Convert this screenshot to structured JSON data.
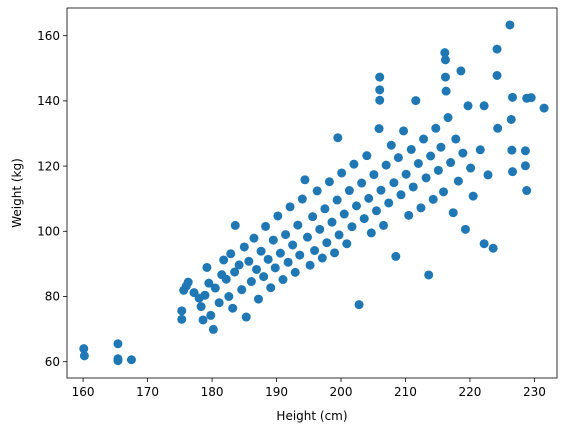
{
  "chart_data": {
    "type": "scatter",
    "title": "",
    "xlabel": "Height (cm)",
    "ylabel": "Weight (kg)",
    "xlim": [
      157.5,
      233.5
    ],
    "ylim": [
      55.0,
      168.5
    ],
    "xticks": [
      160,
      170,
      180,
      190,
      200,
      210,
      220,
      230
    ],
    "yticks": [
      60,
      80,
      100,
      120,
      140,
      160
    ],
    "grid": false,
    "legend": "none",
    "marker_color": "#1f77b4",
    "series": [
      {
        "marker": "circle",
        "points": [
          [
            160.1,
            64.0
          ],
          [
            160.2,
            61.8
          ],
          [
            165.4,
            65.5
          ],
          [
            165.4,
            60.9
          ],
          [
            165.4,
            60.3
          ],
          [
            167.5,
            60.6
          ],
          [
            175.3,
            75.6
          ],
          [
            175.3,
            73.0
          ],
          [
            175.6,
            81.9
          ],
          [
            176.0,
            83.2
          ],
          [
            176.3,
            84.4
          ],
          [
            177.2,
            81.2
          ],
          [
            178.0,
            79.5
          ],
          [
            178.3,
            76.9
          ],
          [
            178.6,
            72.8
          ],
          [
            178.9,
            80.4
          ],
          [
            179.2,
            88.9
          ],
          [
            179.5,
            84.1
          ],
          [
            179.8,
            74.2
          ],
          [
            180.2,
            69.9
          ],
          [
            180.5,
            82.6
          ],
          [
            181.1,
            78.1
          ],
          [
            181.5,
            86.7
          ],
          [
            181.8,
            91.2
          ],
          [
            182.2,
            85.3
          ],
          [
            182.6,
            80.0
          ],
          [
            182.9,
            93.1
          ],
          [
            183.2,
            76.4
          ],
          [
            183.5,
            87.5
          ],
          [
            183.6,
            101.8
          ],
          [
            184.2,
            89.7
          ],
          [
            184.6,
            82.1
          ],
          [
            185.0,
            95.2
          ],
          [
            185.3,
            73.7
          ],
          [
            185.7,
            90.8
          ],
          [
            186.1,
            84.6
          ],
          [
            186.5,
            97.9
          ],
          [
            186.9,
            88.3
          ],
          [
            187.2,
            79.2
          ],
          [
            187.6,
            93.9
          ],
          [
            188.0,
            86.1
          ],
          [
            188.3,
            101.5
          ],
          [
            188.7,
            91.4
          ],
          [
            189.1,
            82.7
          ],
          [
            189.5,
            97.3
          ],
          [
            189.8,
            88.8
          ],
          [
            190.2,
            104.7
          ],
          [
            190.6,
            93.3
          ],
          [
            191.0,
            85.2
          ],
          [
            191.4,
            99.0
          ],
          [
            191.8,
            90.5
          ],
          [
            192.1,
            107.5
          ],
          [
            192.5,
            95.8
          ],
          [
            192.9,
            87.4
          ],
          [
            193.3,
            101.9
          ],
          [
            193.6,
            92.7
          ],
          [
            194.0,
            109.9
          ],
          [
            194.4,
            115.8
          ],
          [
            194.8,
            98.2
          ],
          [
            195.2,
            89.6
          ],
          [
            195.6,
            104.5
          ],
          [
            195.9,
            94.1
          ],
          [
            196.3,
            112.4
          ],
          [
            196.7,
            100.6
          ],
          [
            197.1,
            91.8
          ],
          [
            197.5,
            106.9
          ],
          [
            197.8,
            96.5
          ],
          [
            198.2,
            115.2
          ],
          [
            198.6,
            102.8
          ],
          [
            199.0,
            93.4
          ],
          [
            199.4,
            109.6
          ],
          [
            199.5,
            128.7
          ],
          [
            199.7,
            98.9
          ],
          [
            200.1,
            117.9
          ],
          [
            200.5,
            105.3
          ],
          [
            200.9,
            96.2
          ],
          [
            201.3,
            112.5
          ],
          [
            201.7,
            101.4
          ],
          [
            202.0,
            120.6
          ],
          [
            202.4,
            107.8
          ],
          [
            202.8,
            77.5
          ],
          [
            203.2,
            114.8
          ],
          [
            203.6,
            103.9
          ],
          [
            204.0,
            123.2
          ],
          [
            204.3,
            110.1
          ],
          [
            204.7,
            99.5
          ],
          [
            205.1,
            117.4
          ],
          [
            205.5,
            106.3
          ],
          [
            205.9,
            131.5
          ],
          [
            206.0,
            147.3
          ],
          [
            206.0,
            143.4
          ],
          [
            206.0,
            140.2
          ],
          [
            206.2,
            112.6
          ],
          [
            206.6,
            101.8
          ],
          [
            207.0,
            120.3
          ],
          [
            207.4,
            108.7
          ],
          [
            207.8,
            126.4
          ],
          [
            208.2,
            114.9
          ],
          [
            208.5,
            92.3
          ],
          [
            208.9,
            122.6
          ],
          [
            209.3,
            111.2
          ],
          [
            209.7,
            130.8
          ],
          [
            210.1,
            117.5
          ],
          [
            210.5,
            104.9
          ],
          [
            210.9,
            125.1
          ],
          [
            211.2,
            113.6
          ],
          [
            211.6,
            140.1
          ],
          [
            212.0,
            120.8
          ],
          [
            212.4,
            107.2
          ],
          [
            212.8,
            128.3
          ],
          [
            213.2,
            116.4
          ],
          [
            213.6,
            86.6
          ],
          [
            213.9,
            123.1
          ],
          [
            214.3,
            109.8
          ],
          [
            214.7,
            131.6
          ],
          [
            215.1,
            118.7
          ],
          [
            215.5,
            125.8
          ],
          [
            215.9,
            112.1
          ],
          [
            216.1,
            154.8
          ],
          [
            216.2,
            152.6
          ],
          [
            216.2,
            147.3
          ],
          [
            216.3,
            143.0
          ],
          [
            216.6,
            134.9
          ],
          [
            217.0,
            121.1
          ],
          [
            217.4,
            105.7
          ],
          [
            217.8,
            128.3
          ],
          [
            218.2,
            115.4
          ],
          [
            218.6,
            149.2
          ],
          [
            218.9,
            124.0
          ],
          [
            219.3,
            100.6
          ],
          [
            219.7,
            138.5
          ],
          [
            220.1,
            119.4
          ],
          [
            220.5,
            110.8
          ],
          [
            221.6,
            125.0
          ],
          [
            222.2,
            96.2
          ],
          [
            222.2,
            138.5
          ],
          [
            222.8,
            117.3
          ],
          [
            223.6,
            94.8
          ],
          [
            224.2,
            155.9
          ],
          [
            224.2,
            147.8
          ],
          [
            224.3,
            131.6
          ],
          [
            226.2,
            163.3
          ],
          [
            226.4,
            134.3
          ],
          [
            226.5,
            124.9
          ],
          [
            226.6,
            141.1
          ],
          [
            226.6,
            118.3
          ],
          [
            228.6,
            124.7
          ],
          [
            228.6,
            120.1
          ],
          [
            228.8,
            112.5
          ],
          [
            228.8,
            140.8
          ],
          [
            229.5,
            141.0
          ],
          [
            231.5,
            137.8
          ]
        ]
      }
    ]
  }
}
